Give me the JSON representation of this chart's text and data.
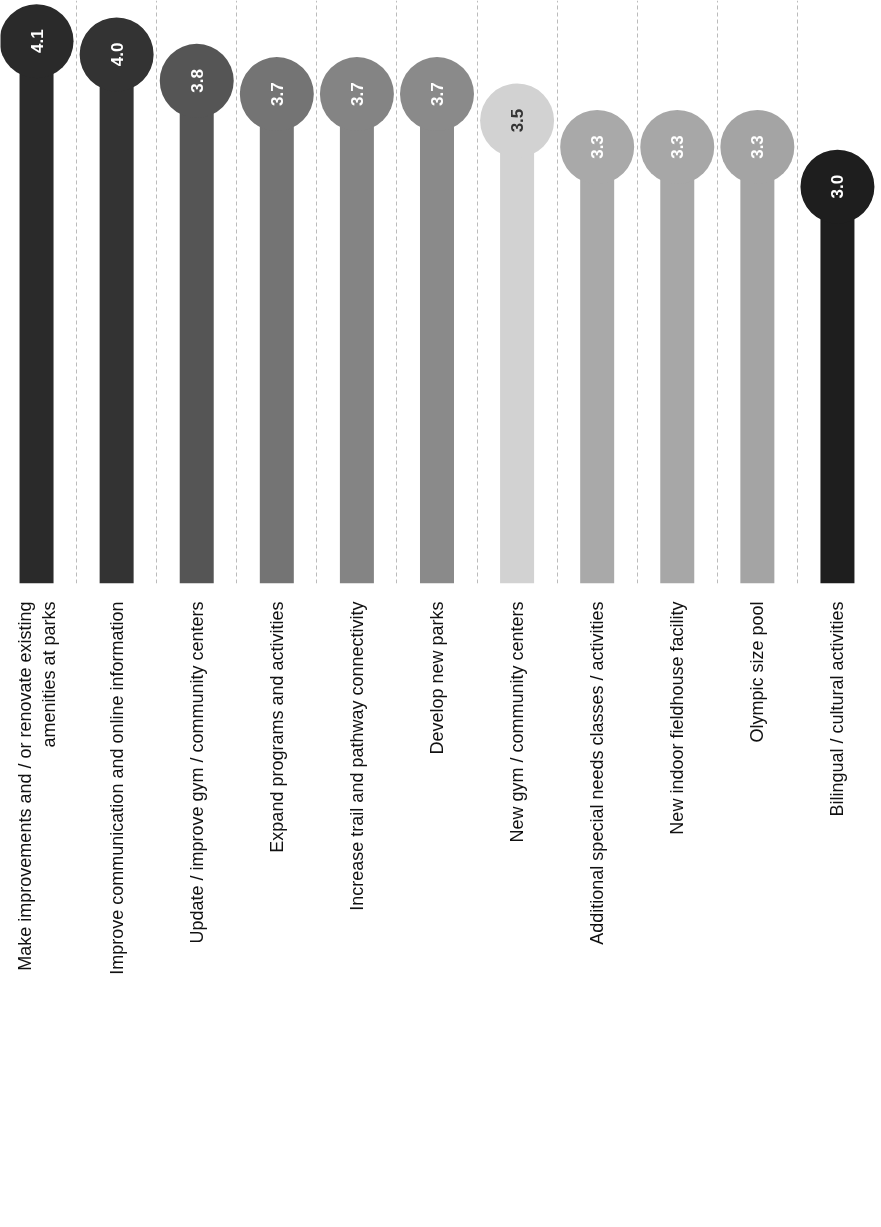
{
  "chart_data": {
    "type": "lollipop",
    "categories": [
      "Make improvements and / or renovate existing\namenities at parks",
      "Improve communication and online information",
      "Update / improve gym / community centers",
      "Expand programs and activities",
      "Increase trail and pathway connectivity",
      "Develop new parks",
      "New gym / community centers",
      "Additional special needs classes / activities",
      "New indoor fieldhouse facility",
      "Olympic size pool",
      "Bilingual / cultural activities"
    ],
    "values": [
      4.1,
      4.0,
      3.8,
      3.7,
      3.7,
      3.7,
      3.5,
      3.3,
      3.3,
      3.3,
      3.0
    ],
    "value_labels": [
      "4.1",
      "4.0",
      "3.8",
      "3.7",
      "3.7",
      "3.7",
      "3.5",
      "3.3",
      "3.3",
      "3.3",
      "3.0"
    ],
    "colors": [
      "#2a2a2a",
      "#333333",
      "#555555",
      "#747474",
      "#848484",
      "#8a8a8a",
      "#d2d2d2",
      "#a9a9a9",
      "#a7a7a7",
      "#a4a4a4",
      "#1e1e1e"
    ],
    "marker": "circle",
    "grid": "x"
  }
}
